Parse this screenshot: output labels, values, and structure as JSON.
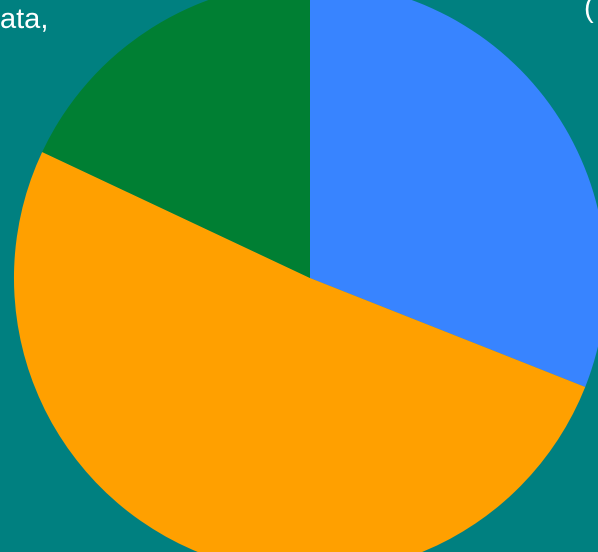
{
  "text_fragments": {
    "left": "ata,",
    "right": "("
  },
  "chart_data": {
    "type": "pie",
    "title": "",
    "slices": [
      {
        "label": "",
        "value": 31,
        "color": "#3884ff"
      },
      {
        "label": "",
        "value": 51,
        "color": "#ffa000"
      },
      {
        "label": "",
        "value": 18,
        "color": "#007f33"
      }
    ],
    "start_angle_deg": 0,
    "direction": "clockwise",
    "legend": "none",
    "data_labels": false
  }
}
